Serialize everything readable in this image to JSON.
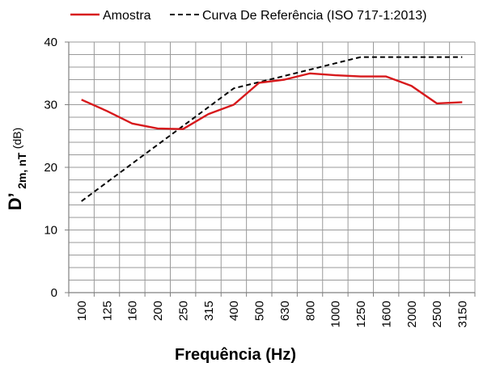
{
  "chart_data": {
    "type": "line",
    "title": "",
    "xlabel": "Frequência (Hz)",
    "ylabel": {
      "main": "D’",
      "subscript": "2m, nT",
      "unit": " (dB)"
    },
    "categories": [
      "100",
      "125",
      "160",
      "200",
      "250",
      "315",
      "400",
      "500",
      "630",
      "800",
      "1000",
      "1250",
      "1600",
      "2000",
      "2500",
      "3150"
    ],
    "ylim": [
      0,
      40
    ],
    "yticks": [
      0,
      10,
      20,
      30,
      40
    ],
    "grid": true,
    "legend_position": "top",
    "series": [
      {
        "name": "Amostra",
        "style": "solid",
        "color": "#d7191c",
        "values": [
          30.8,
          29.0,
          27.0,
          26.2,
          26.1,
          28.5,
          30.0,
          33.5,
          34.0,
          35.0,
          34.7,
          34.5,
          34.5,
          33.0,
          30.2,
          30.4
        ]
      },
      {
        "name": "Curva De Referência (ISO 717-1:2013)",
        "style": "dashed",
        "color": "#000000",
        "values": [
          14.6,
          17.6,
          20.6,
          23.6,
          26.6,
          29.6,
          32.6,
          33.6,
          34.6,
          35.6,
          36.6,
          37.6,
          37.6,
          37.6,
          37.6,
          37.6
        ]
      }
    ]
  }
}
